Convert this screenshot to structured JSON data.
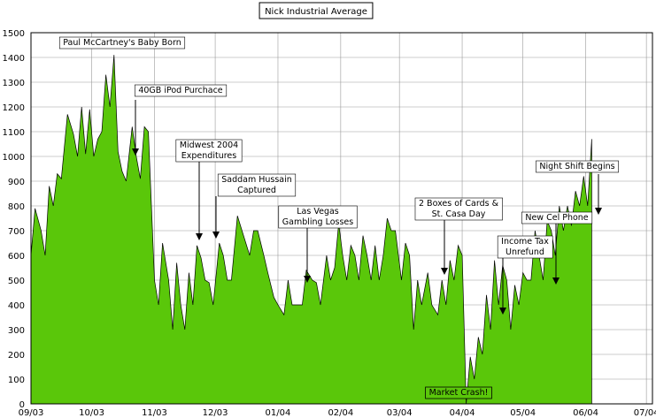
{
  "chart_data": {
    "type": "area",
    "title": "Nick Industrial Average",
    "xlabel": "",
    "ylabel": "",
    "ylim": [
      0,
      1500
    ],
    "yticks": [
      0,
      100,
      200,
      300,
      400,
      500,
      600,
      700,
      800,
      900,
      1000,
      1100,
      1200,
      1300,
      1400,
      1500
    ],
    "grid": true,
    "legend": "none",
    "fill_color": "#5ac70a",
    "x_tick_labels": [
      {
        "label": "09/03",
        "x": "2003-09-01"
      },
      {
        "label": "10/03",
        "x": "2003-10-01"
      },
      {
        "label": "11/03",
        "x": "2003-11-01"
      },
      {
        "label": "12/03",
        "x": "2003-12-01"
      },
      {
        "label": "01/04",
        "x": "2004-01-01"
      },
      {
        "label": "02/04",
        "x": "2004-02-01"
      },
      {
        "label": "03/04",
        "x": "2004-03-01"
      },
      {
        "label": "04/04",
        "x": "2004-04-01"
      },
      {
        "label": "05/04",
        "x": "2004-05-01"
      },
      {
        "label": "06/04",
        "x": "2004-06-01"
      },
      {
        "label": "07/04",
        "x": "2004-07-01"
      }
    ],
    "series": [
      {
        "points": [
          [
            "2003-09-01",
            600
          ],
          [
            "2003-09-03",
            790
          ],
          [
            "2003-09-06",
            700
          ],
          [
            "2003-09-08",
            600
          ],
          [
            "2003-09-10",
            880
          ],
          [
            "2003-09-12",
            800
          ],
          [
            "2003-09-14",
            930
          ],
          [
            "2003-09-16",
            910
          ],
          [
            "2003-09-19",
            1170
          ],
          [
            "2003-09-22",
            1090
          ],
          [
            "2003-09-24",
            1000
          ],
          [
            "2003-09-26",
            1200
          ],
          [
            "2003-09-28",
            1010
          ],
          [
            "2003-09-30",
            1190
          ],
          [
            "2003-10-02",
            1000
          ],
          [
            "2003-10-04",
            1070
          ],
          [
            "2003-10-06",
            1100
          ],
          [
            "2003-10-08",
            1330
          ],
          [
            "2003-10-10",
            1200
          ],
          [
            "2003-10-12",
            1410
          ],
          [
            "2003-10-14",
            1020
          ],
          [
            "2003-10-16",
            940
          ],
          [
            "2003-10-18",
            900
          ],
          [
            "2003-10-21",
            1120
          ],
          [
            "2003-10-23",
            1000
          ],
          [
            "2003-10-25",
            910
          ],
          [
            "2003-10-27",
            1120
          ],
          [
            "2003-10-29",
            1100
          ],
          [
            "2003-11-01",
            500
          ],
          [
            "2003-11-03",
            400
          ],
          [
            "2003-11-05",
            650
          ],
          [
            "2003-11-08",
            500
          ],
          [
            "2003-11-10",
            300
          ],
          [
            "2003-11-12",
            570
          ],
          [
            "2003-11-14",
            400
          ],
          [
            "2003-11-16",
            300
          ],
          [
            "2003-11-18",
            530
          ],
          [
            "2003-11-20",
            400
          ],
          [
            "2003-11-22",
            640
          ],
          [
            "2003-11-24",
            590
          ],
          [
            "2003-11-26",
            500
          ],
          [
            "2003-11-28",
            490
          ],
          [
            "2003-11-30",
            400
          ],
          [
            "2003-12-03",
            650
          ],
          [
            "2003-12-05",
            600
          ],
          [
            "2003-12-07",
            500
          ],
          [
            "2003-12-09",
            500
          ],
          [
            "2003-12-12",
            760
          ],
          [
            "2003-12-15",
            680
          ],
          [
            "2003-12-18",
            600
          ],
          [
            "2003-12-20",
            700
          ],
          [
            "2003-12-22",
            700
          ],
          [
            "2003-12-25",
            600
          ],
          [
            "2003-12-27",
            530
          ],
          [
            "2003-12-30",
            430
          ],
          [
            "2004-01-01",
            400
          ],
          [
            "2004-01-04",
            360
          ],
          [
            "2004-01-06",
            500
          ],
          [
            "2004-01-08",
            400
          ],
          [
            "2004-01-10",
            400
          ],
          [
            "2004-01-13",
            400
          ],
          [
            "2004-01-15",
            540
          ],
          [
            "2004-01-18",
            500
          ],
          [
            "2004-01-20",
            490
          ],
          [
            "2004-01-22",
            400
          ],
          [
            "2004-01-25",
            600
          ],
          [
            "2004-01-27",
            500
          ],
          [
            "2004-01-29",
            550
          ],
          [
            "2004-01-31",
            730
          ],
          [
            "2004-02-02",
            600
          ],
          [
            "2004-02-04",
            500
          ],
          [
            "2004-02-06",
            640
          ],
          [
            "2004-02-08",
            600
          ],
          [
            "2004-02-10",
            500
          ],
          [
            "2004-02-12",
            680
          ],
          [
            "2004-02-14",
            600
          ],
          [
            "2004-02-16",
            500
          ],
          [
            "2004-02-18",
            640
          ],
          [
            "2004-02-20",
            500
          ],
          [
            "2004-02-22",
            600
          ],
          [
            "2004-02-24",
            750
          ],
          [
            "2004-02-26",
            700
          ],
          [
            "2004-02-28",
            700
          ],
          [
            "2004-03-02",
            500
          ],
          [
            "2004-03-04",
            650
          ],
          [
            "2004-03-06",
            600
          ],
          [
            "2004-03-08",
            300
          ],
          [
            "2004-03-10",
            500
          ],
          [
            "2004-03-12",
            400
          ],
          [
            "2004-03-15",
            530
          ],
          [
            "2004-03-17",
            400
          ],
          [
            "2004-03-20",
            360
          ],
          [
            "2004-03-22",
            500
          ],
          [
            "2004-03-24",
            400
          ],
          [
            "2004-03-26",
            580
          ],
          [
            "2004-03-28",
            500
          ],
          [
            "2004-03-30",
            640
          ],
          [
            "2004-04-01",
            600
          ],
          [
            "2004-04-03",
            0
          ],
          [
            "2004-04-05",
            190
          ],
          [
            "2004-04-07",
            100
          ],
          [
            "2004-04-09",
            270
          ],
          [
            "2004-04-11",
            200
          ],
          [
            "2004-04-13",
            440
          ],
          [
            "2004-04-15",
            300
          ],
          [
            "2004-04-17",
            580
          ],
          [
            "2004-04-19",
            400
          ],
          [
            "2004-04-21",
            560
          ],
          [
            "2004-04-23",
            500
          ],
          [
            "2004-04-25",
            300
          ],
          [
            "2004-04-27",
            480
          ],
          [
            "2004-04-29",
            400
          ],
          [
            "2004-05-01",
            530
          ],
          [
            "2004-05-03",
            500
          ],
          [
            "2004-05-05",
            500
          ],
          [
            "2004-05-07",
            700
          ],
          [
            "2004-05-09",
            600
          ],
          [
            "2004-05-11",
            500
          ],
          [
            "2004-05-13",
            740
          ],
          [
            "2004-05-15",
            700
          ],
          [
            "2004-05-17",
            600
          ],
          [
            "2004-05-19",
            800
          ],
          [
            "2004-05-21",
            700
          ],
          [
            "2004-05-23",
            800
          ],
          [
            "2004-05-25",
            720
          ],
          [
            "2004-05-27",
            860
          ],
          [
            "2004-05-29",
            800
          ],
          [
            "2004-05-31",
            920
          ],
          [
            "2004-06-02",
            800
          ],
          [
            "2004-06-04",
            1070
          ]
        ]
      }
    ],
    "annotations": [
      {
        "lines": [
          "Paul McCartney's Baby Born"
        ],
        "target": [
          "2003-10-12",
          1410
        ],
        "arrow": false
      },
      {
        "lines": [
          "40GB iPod Purchace"
        ],
        "target": [
          "2003-10-16",
          930
        ],
        "arrow": true
      },
      {
        "lines": [
          "Midwest 2004",
          "Expenditures"
        ],
        "target": [
          "2003-11-20",
          650
        ],
        "arrow": true
      },
      {
        "lines": [
          "Saddam Hussain",
          "Captured"
        ],
        "target": [
          "2003-11-22",
          670
        ],
        "arrow": true
      },
      {
        "lines": [
          "Las Vegas",
          "Gambling Losses"
        ],
        "target": [
          "2004-01-04",
          450
        ],
        "arrow": true
      },
      {
        "lines": [
          "2 Boxes of Cards &",
          "St. Casa Day"
        ],
        "target": [
          "2004-03-10",
          520
        ],
        "arrow": true
      },
      {
        "lines": [
          "Income Tax",
          "Unrefund"
        ],
        "target": [
          "2004-04-03",
          360
        ],
        "arrow": true
      },
      {
        "lines": [
          "New Cel Phone"
        ],
        "target": [
          "2004-04-27",
          480
        ],
        "arrow": true
      },
      {
        "lines": [
          "Night Shift Begins"
        ],
        "target": [
          "2004-05-17",
          770
        ],
        "arrow": true
      },
      {
        "lines": [
          "Market Crash!"
        ],
        "target": [
          "2004-04-03",
          0
        ],
        "arrow": false
      }
    ]
  }
}
